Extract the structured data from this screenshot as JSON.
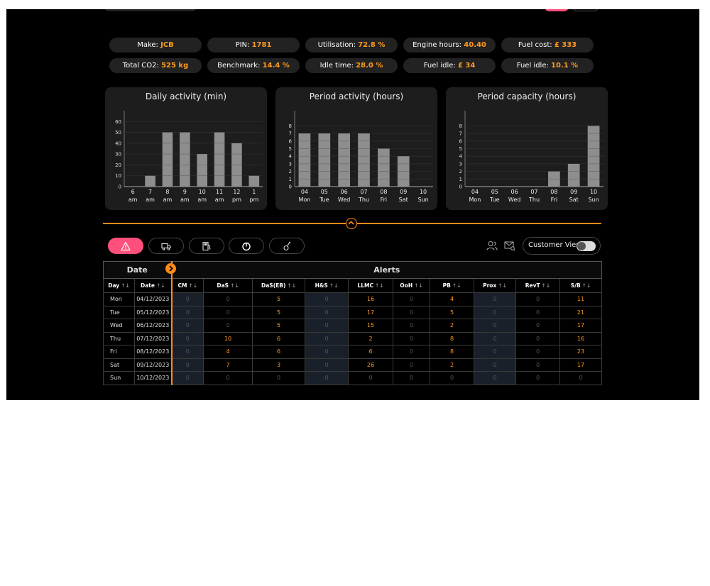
{
  "stats_row1": [
    {
      "label": "Make:",
      "value": "JCB"
    },
    {
      "label": "PIN:",
      "value": "1781"
    },
    {
      "label": "Utilisation:",
      "value": "72.8 %"
    },
    {
      "label": "Engine hours:",
      "value": "40.40"
    },
    {
      "label": "Fuel cost:",
      "value": "£ 333"
    }
  ],
  "stats_row2": [
    {
      "label": "Total CO2:",
      "value": "525 kg"
    },
    {
      "label": "Benchmark:",
      "value": "14.4 %"
    },
    {
      "label": "Idle time:",
      "value": "28.0 %"
    },
    {
      "label": "Fuel idle:",
      "value": "£ 34"
    },
    {
      "label": "Fuel idle:",
      "value": "10.1 %"
    }
  ],
  "chart_data": [
    {
      "type": "bar",
      "title": "Daily activity (min)",
      "categories": [
        [
          "6",
          "am"
        ],
        [
          "7",
          "am"
        ],
        [
          "8",
          "am"
        ],
        [
          "9",
          "am"
        ],
        [
          "10",
          "am"
        ],
        [
          "11",
          "am"
        ],
        [
          "12",
          "pm"
        ],
        [
          "1",
          "pm"
        ]
      ],
      "values": [
        0,
        10,
        50,
        50,
        30,
        50,
        40,
        10
      ],
      "yticks": [
        0,
        10,
        20,
        30,
        40,
        50,
        60
      ],
      "ylim": [
        0,
        70
      ]
    },
    {
      "type": "bar",
      "title": "Period activity (hours)",
      "categories": [
        [
          "04",
          "Mon"
        ],
        [
          "05",
          "Tue"
        ],
        [
          "06",
          "Wed"
        ],
        [
          "07",
          "Thu"
        ],
        [
          "08",
          "Fri"
        ],
        [
          "09",
          "Sat"
        ],
        [
          "10",
          "Sun"
        ]
      ],
      "values": [
        7,
        7,
        7,
        7,
        5,
        4,
        0
      ],
      "yticks": [
        0,
        1,
        2,
        3,
        4,
        5,
        6,
        7,
        8
      ],
      "ylim": [
        0,
        10
      ]
    },
    {
      "type": "bar",
      "title": "Period capacity (hours)",
      "categories": [
        [
          "04",
          "Mon"
        ],
        [
          "05",
          "Tue"
        ],
        [
          "06",
          "Wed"
        ],
        [
          "07",
          "Thu"
        ],
        [
          "08",
          "Fri"
        ],
        [
          "09",
          "Sat"
        ],
        [
          "10",
          "Sun"
        ]
      ],
      "values": [
        0,
        0,
        0,
        0,
        2,
        3,
        8
      ],
      "yticks": [
        0,
        1,
        2,
        3,
        4,
        5,
        6,
        7,
        8
      ],
      "ylim": [
        0,
        10
      ]
    }
  ],
  "toolbar": {
    "icons": [
      "alert-icon",
      "truck-icon",
      "fuel-icon",
      "power-icon",
      "joystick-icon"
    ],
    "customer_view_label": "Customer View"
  },
  "table": {
    "group_date": "Date",
    "group_alerts": "Alerts",
    "columns": [
      "Day",
      "Date",
      "CM",
      "DaS",
      "DaS(EB)",
      "H&S",
      "LLMC",
      "OoH",
      "PB",
      "Prox",
      "RevT",
      "S/B"
    ],
    "sort_glyph": "↑↓",
    "rows": [
      {
        "day": "Mon",
        "date": "04/12/2023",
        "vals": [
          "0",
          "0",
          "5",
          "0",
          "16",
          "0",
          "4",
          "0",
          "0",
          "11"
        ]
      },
      {
        "day": "Tue",
        "date": "05/12/2023",
        "vals": [
          "0",
          "0",
          "5",
          "0",
          "17",
          "0",
          "5",
          "0",
          "0",
          "21"
        ]
      },
      {
        "day": "Wed",
        "date": "06/12/2023",
        "vals": [
          "0",
          "0",
          "5",
          "0",
          "15",
          "0",
          "2",
          "0",
          "0",
          "17"
        ]
      },
      {
        "day": "Thu",
        "date": "07/12/2023",
        "vals": [
          "0",
          "10",
          "6",
          "0",
          "2",
          "0",
          "8",
          "0",
          "0",
          "16"
        ]
      },
      {
        "day": "Fri",
        "date": "08/12/2023",
        "vals": [
          "0",
          "4",
          "6",
          "0",
          "6",
          "0",
          "8",
          "0",
          "0",
          "23"
        ]
      },
      {
        "day": "Sat",
        "date": "09/12/2023",
        "vals": [
          "0",
          "7",
          "3",
          "0",
          "26",
          "0",
          "2",
          "0",
          "0",
          "17"
        ]
      },
      {
        "day": "Sun",
        "date": "10/12/2023",
        "vals": [
          "0",
          "0",
          "0",
          "0",
          "0",
          "0",
          "0",
          "0",
          "0",
          "0"
        ]
      }
    ]
  },
  "colors": {
    "accent": "#ff9a1f",
    "active": "#ff4f7b",
    "bar": "#8e8e8e"
  }
}
